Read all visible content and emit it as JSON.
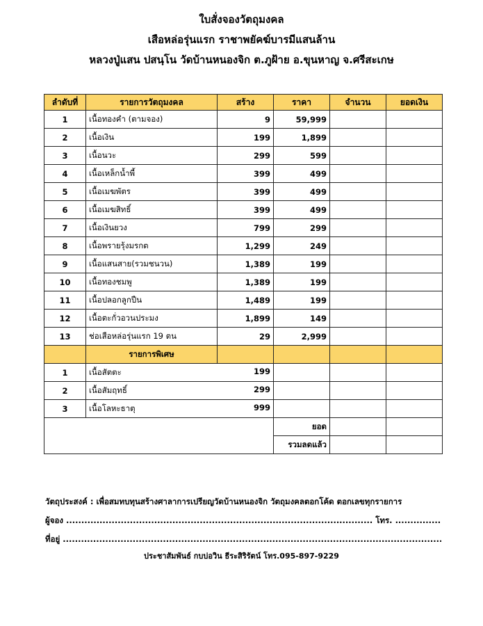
{
  "title": {
    "line1": "ใบสั่งจองวัตถุมงคล",
    "line2": "เสือหล่อรุ่นแรก ราชาพยัคฆ์บารมีแสนล้าน",
    "line3": "หลวงปู่แสน ปสนฺโน วัดบ้านหนองจิก ต.ภูฝ้าย  อ.ขุนหาญ  จ.ศรีสะเกษ"
  },
  "colors": {
    "header_bg": "#fbd56a"
  },
  "table": {
    "headers": [
      "ลำดับที่",
      "รายการวัตถุมงคล",
      "สร้าง",
      "ราคา",
      "จำนวน",
      "ยอดเงิน"
    ],
    "rows": [
      {
        "no": "1",
        "name": "เนื้อทองคำ (ตามจอง)",
        "made": "9",
        "price": "59,999"
      },
      {
        "no": "2",
        "name": "เนื้อเงิน",
        "made": "199",
        "price": "1,899"
      },
      {
        "no": "3",
        "name": "เนื้อนวะ",
        "made": "299",
        "price": "599"
      },
      {
        "no": "4",
        "name": "เนื้อเหล็กน้ำพี้",
        "made": "399",
        "price": "499"
      },
      {
        "no": "5",
        "name": "เนื้อเมฆพัตร",
        "made": "399",
        "price": "499"
      },
      {
        "no": "6",
        "name": "เนื้อเมฆสิทธิ์",
        "made": "399",
        "price": "499"
      },
      {
        "no": "7",
        "name": "เนื้อเงินยวง",
        "made": "799",
        "price": "299"
      },
      {
        "no": "8",
        "name": "เนื้อพรายรุ้งมรกต",
        "made": "1,299",
        "price": "249"
      },
      {
        "no": "9",
        "name": "เนื้อแสนสาย(รวมชนวน)",
        "made": "1,389",
        "price": "199"
      },
      {
        "no": "10",
        "name": "เนื้อทองชมพู",
        "made": "1,389",
        "price": "199"
      },
      {
        "no": "11",
        "name": "เนื้อปลอกลูกปืน",
        "made": "1,489",
        "price": "199"
      },
      {
        "no": "12",
        "name": "เนื้อตะกั่วอวนประมง",
        "made": "1,899",
        "price": "149"
      },
      {
        "no": "13",
        "name": "ช่อเสือหล่อรุ่นแรก 19 ตน",
        "made": "29",
        "price": "2,999"
      }
    ],
    "special_header": "รายการพิเศษ",
    "special_rows": [
      {
        "no": "1",
        "name": "เนื้อสัตตะ",
        "made": "199"
      },
      {
        "no": "2",
        "name": "เนื้อสัมฤทธิ์",
        "made": "299"
      },
      {
        "no": "3",
        "name": "เนื้อโลหะธาตุ",
        "made": "999"
      }
    ],
    "total_label": "ยอด",
    "discount_total_label": "รวมลดแล้ว"
  },
  "footer": {
    "purpose": "วัตถุประสงค์ : เพื่อสมทบทุนสร้างศาลาการเปรียญวัดบ้านหนองจิก วัตถุมงคลตอกโค้ด ตอกเลขทุกรายการ",
    "booker_label": "ผู้จอง",
    "phone_label": "โทร.",
    "address_label": "ที่อยู่",
    "contact": "ประชาสัมพันธ์  กบบ่อวิน  ธีระสิริรัตน์  โทร.095-897-9229"
  }
}
